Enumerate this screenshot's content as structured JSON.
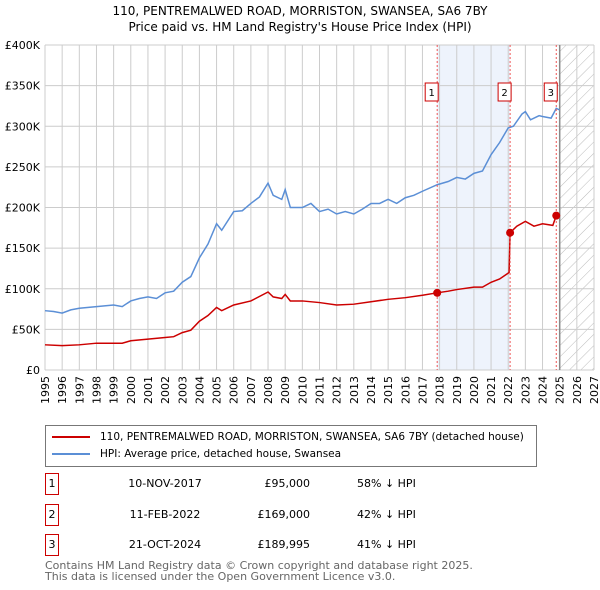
{
  "title_line1": "110, PENTREMALWED ROAD, MORRISTON, SWANSEA, SA6 7BY",
  "title_line2": "Price paid vs. HM Land Registry's House Price Index (HPI)",
  "chart_data": {
    "type": "line",
    "xlim": [
      1995,
      2027
    ],
    "ylim": [
      0,
      400000
    ],
    "yticks": [
      "£0",
      "£50K",
      "£100K",
      "£150K",
      "£200K",
      "£250K",
      "£300K",
      "£350K",
      "£400K"
    ],
    "xticks": [
      "1995",
      "1996",
      "1997",
      "1998",
      "1999",
      "2000",
      "2001",
      "2002",
      "2003",
      "2004",
      "2005",
      "2006",
      "2007",
      "2008",
      "2009",
      "2010",
      "2011",
      "2012",
      "2013",
      "2014",
      "2015",
      "2016",
      "2017",
      "2018",
      "2019",
      "2020",
      "2021",
      "2022",
      "2023",
      "2024",
      "2025",
      "2026",
      "2027"
    ],
    "forecast_start": 2025.0,
    "shaded_range": [
      2017.86,
      2022.11
    ],
    "series": [
      {
        "name": "110, PENTREMALWED ROAD, MORRISTON, SWANSEA, SA6 7BY (detached house)",
        "color": "#cc0000",
        "x": [
          1995,
          1996,
          1997,
          1998,
          1999,
          1999.5,
          2000,
          2001,
          2002,
          2002.5,
          2003,
          2003.5,
          2004,
          2004.5,
          2005,
          2005.3,
          2006,
          2007,
          2008,
          2008.3,
          2008.8,
          2009,
          2009.3,
          2010,
          2011,
          2012,
          2013,
          2014,
          2015,
          2016,
          2017,
          2017.86,
          2018.5,
          2019,
          2020,
          2020.5,
          2021,
          2021.5,
          2022.05,
          2022.11,
          2022.5,
          2023,
          2023.5,
          2024,
          2024.6,
          2024.8,
          2025
        ],
        "y": [
          31000,
          30000,
          31000,
          33000,
          33000,
          33000,
          36000,
          38000,
          40000,
          41000,
          46000,
          49000,
          60000,
          67000,
          77000,
          73000,
          80000,
          85000,
          96000,
          90000,
          88000,
          93000,
          85000,
          85000,
          83000,
          80000,
          81000,
          84000,
          87000,
          89000,
          92000,
          95000,
          97000,
          99000,
          102000,
          102000,
          108000,
          112000,
          120000,
          169000,
          177000,
          183000,
          177000,
          180000,
          178000,
          189995,
          190000
        ]
      },
      {
        "name": "HPI: Average price, detached house, Swansea",
        "color": "#5b8fd6",
        "x": [
          1995,
          1995.5,
          1996,
          1996.5,
          1997,
          1998,
          1999,
          1999.5,
          2000,
          2000.5,
          2001,
          2001.5,
          2002,
          2002.5,
          2003,
          2003.5,
          2004,
          2004.5,
          2005,
          2005.3,
          2006,
          2006.5,
          2007,
          2007.5,
          2008,
          2008.3,
          2008.8,
          2009,
          2009.3,
          2010,
          2010.5,
          2011,
          2011.5,
          2012,
          2012.5,
          2013,
          2013.5,
          2014,
          2014.5,
          2015,
          2015.5,
          2016,
          2016.5,
          2017,
          2017.86,
          2018.5,
          2019,
          2019.5,
          2020,
          2020.5,
          2021,
          2021.5,
          2022,
          2022.3,
          2022.8,
          2023,
          2023.3,
          2023.8,
          2024,
          2024.5,
          2024.8,
          2025
        ],
        "y": [
          73000,
          72000,
          70000,
          74000,
          76000,
          78000,
          80000,
          78000,
          85000,
          88000,
          90000,
          88000,
          95000,
          97000,
          108000,
          115000,
          138000,
          155000,
          180000,
          172000,
          195000,
          196000,
          205000,
          213000,
          230000,
          215000,
          210000,
          222000,
          200000,
          200000,
          205000,
          195000,
          198000,
          192000,
          195000,
          192000,
          198000,
          205000,
          205000,
          210000,
          205000,
          212000,
          215000,
          220000,
          228000,
          232000,
          237000,
          235000,
          242000,
          245000,
          265000,
          280000,
          298000,
          300000,
          315000,
          318000,
          308000,
          313000,
          312000,
          310000,
          322000,
          320000
        ]
      }
    ],
    "sales": [
      {
        "label": "1",
        "x": 2017.86,
        "y": 95000,
        "date": "10-NOV-2017",
        "price": "£95,000",
        "hpi": "58% ↓ HPI"
      },
      {
        "label": "2",
        "x": 2022.11,
        "y": 169000,
        "date": "11-FEB-2022",
        "price": "£169,000",
        "hpi": "42% ↓ HPI"
      },
      {
        "label": "3",
        "x": 2024.8,
        "y": 189995,
        "date": "21-OCT-2024",
        "price": "£189,995",
        "hpi": "41% ↓ HPI"
      }
    ]
  },
  "footer_line1": "Contains HM Land Registry data © Crown copyright and database right 2025.",
  "footer_line2": "This data is licensed under the Open Government Licence v3.0."
}
